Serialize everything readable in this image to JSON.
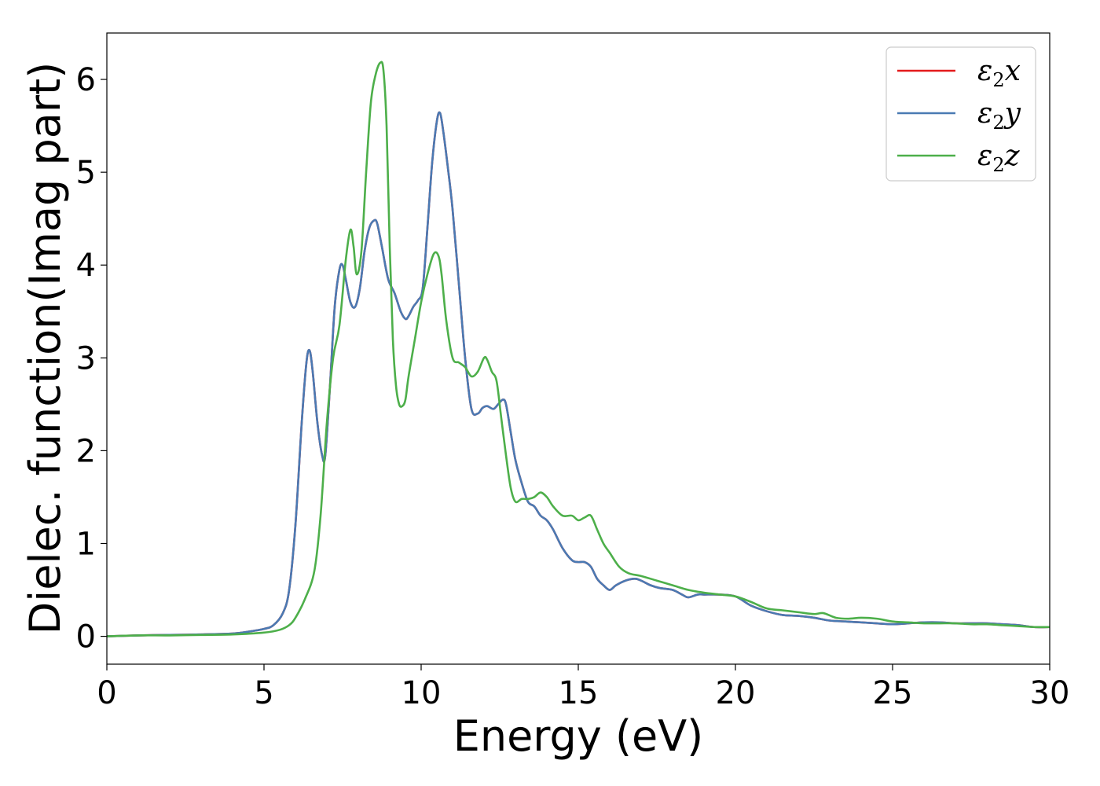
{
  "chart_data": {
    "type": "line",
    "title": "",
    "xlabel": "Energy (eV)",
    "ylabel": "Dielec. function(Imag part)",
    "xlim": [
      0,
      30
    ],
    "ylim": [
      -0.3,
      6.5
    ],
    "xticks": [
      0,
      5,
      10,
      15,
      20,
      25,
      30
    ],
    "yticks": [
      0,
      1,
      2,
      3,
      4,
      5,
      6
    ],
    "grid": false,
    "legend_position": "top-right",
    "series": [
      {
        "name": "ε2x",
        "label_base": "ε",
        "label_sub": "2",
        "label_var": "x",
        "color": "#e41a1c",
        "x": [
          0,
          1,
          2,
          3,
          4,
          4.5,
          5,
          5.3,
          5.6,
          5.8,
          6.0,
          6.2,
          6.35,
          6.45,
          6.55,
          6.7,
          6.85,
          6.95,
          7.1,
          7.25,
          7.4,
          7.5,
          7.6,
          7.75,
          7.9,
          8.05,
          8.2,
          8.35,
          8.5,
          8.6,
          8.75,
          8.95,
          9.15,
          9.35,
          9.5,
          9.6,
          9.75,
          9.9,
          10.05,
          10.2,
          10.35,
          10.5,
          10.6,
          10.7,
          10.85,
          11.0,
          11.2,
          11.4,
          11.6,
          11.8,
          11.95,
          12.1,
          12.3,
          12.45,
          12.6,
          12.7,
          12.85,
          13.0,
          13.2,
          13.4,
          13.6,
          13.8,
          14.0,
          14.2,
          14.5,
          14.8,
          15.0,
          15.2,
          15.4,
          15.6,
          15.8,
          16.0,
          16.2,
          16.5,
          16.8,
          17.0,
          17.3,
          17.6,
          18.0,
          18.3,
          18.5,
          18.8,
          19.0,
          19.5,
          20.0,
          20.5,
          21.0,
          21.5,
          22.0,
          22.5,
          23.0,
          23.5,
          24.0,
          24.5,
          25.0,
          25.5,
          26.0,
          26.5,
          27.0,
          27.5,
          28.0,
          28.5,
          29.0,
          29.5,
          30.0
        ],
        "y": [
          0.0,
          0.01,
          0.015,
          0.02,
          0.03,
          0.05,
          0.08,
          0.12,
          0.25,
          0.5,
          1.2,
          2.3,
          2.95,
          3.08,
          2.85,
          2.3,
          1.95,
          1.95,
          2.7,
          3.55,
          3.95,
          4.0,
          3.85,
          3.6,
          3.55,
          3.75,
          4.15,
          4.4,
          4.48,
          4.45,
          4.2,
          3.85,
          3.7,
          3.5,
          3.42,
          3.45,
          3.55,
          3.62,
          3.75,
          4.4,
          5.1,
          5.55,
          5.64,
          5.45,
          5.05,
          4.6,
          3.8,
          3.0,
          2.45,
          2.4,
          2.46,
          2.48,
          2.45,
          2.5,
          2.55,
          2.5,
          2.2,
          1.9,
          1.65,
          1.45,
          1.4,
          1.3,
          1.25,
          1.15,
          0.95,
          0.82,
          0.8,
          0.8,
          0.75,
          0.62,
          0.55,
          0.5,
          0.55,
          0.6,
          0.62,
          0.6,
          0.55,
          0.52,
          0.5,
          0.45,
          0.42,
          0.45,
          0.45,
          0.45,
          0.43,
          0.33,
          0.27,
          0.23,
          0.22,
          0.2,
          0.17,
          0.16,
          0.15,
          0.14,
          0.13,
          0.14,
          0.15,
          0.15,
          0.14,
          0.14,
          0.14,
          0.13,
          0.12,
          0.1,
          0.1
        ]
      },
      {
        "name": "ε2y",
        "label_base": "ε",
        "label_sub": "2",
        "label_var": "y",
        "color": "#4a7ab3",
        "x": [
          0,
          1,
          2,
          3,
          4,
          4.5,
          5,
          5.3,
          5.6,
          5.8,
          6.0,
          6.2,
          6.35,
          6.45,
          6.55,
          6.7,
          6.85,
          6.95,
          7.1,
          7.25,
          7.4,
          7.5,
          7.6,
          7.75,
          7.9,
          8.05,
          8.2,
          8.35,
          8.5,
          8.6,
          8.75,
          8.95,
          9.15,
          9.35,
          9.5,
          9.6,
          9.75,
          9.9,
          10.05,
          10.2,
          10.35,
          10.5,
          10.6,
          10.7,
          10.85,
          11.0,
          11.2,
          11.4,
          11.6,
          11.8,
          11.95,
          12.1,
          12.3,
          12.45,
          12.6,
          12.7,
          12.85,
          13.0,
          13.2,
          13.4,
          13.6,
          13.8,
          14.0,
          14.2,
          14.5,
          14.8,
          15.0,
          15.2,
          15.4,
          15.6,
          15.8,
          16.0,
          16.2,
          16.5,
          16.8,
          17.0,
          17.3,
          17.6,
          18.0,
          18.3,
          18.5,
          18.8,
          19.0,
          19.5,
          20.0,
          20.5,
          21.0,
          21.5,
          22.0,
          22.5,
          23.0,
          23.5,
          24.0,
          24.5,
          25.0,
          25.5,
          26.0,
          26.5,
          27.0,
          27.5,
          28.0,
          28.5,
          29.0,
          29.5,
          30.0
        ],
        "y": [
          0.0,
          0.01,
          0.015,
          0.02,
          0.03,
          0.05,
          0.08,
          0.12,
          0.25,
          0.5,
          1.2,
          2.3,
          2.95,
          3.08,
          2.85,
          2.3,
          1.95,
          1.95,
          2.7,
          3.55,
          3.95,
          4.0,
          3.85,
          3.6,
          3.55,
          3.75,
          4.15,
          4.4,
          4.48,
          4.45,
          4.2,
          3.85,
          3.7,
          3.5,
          3.42,
          3.45,
          3.55,
          3.62,
          3.75,
          4.4,
          5.1,
          5.55,
          5.64,
          5.45,
          5.05,
          4.6,
          3.8,
          3.0,
          2.45,
          2.4,
          2.46,
          2.48,
          2.45,
          2.5,
          2.55,
          2.5,
          2.2,
          1.9,
          1.65,
          1.45,
          1.4,
          1.3,
          1.25,
          1.15,
          0.95,
          0.82,
          0.8,
          0.8,
          0.75,
          0.62,
          0.55,
          0.5,
          0.55,
          0.6,
          0.62,
          0.6,
          0.55,
          0.52,
          0.5,
          0.45,
          0.42,
          0.45,
          0.45,
          0.45,
          0.43,
          0.33,
          0.27,
          0.23,
          0.22,
          0.2,
          0.17,
          0.16,
          0.15,
          0.14,
          0.13,
          0.14,
          0.15,
          0.15,
          0.14,
          0.14,
          0.14,
          0.13,
          0.12,
          0.1,
          0.1
        ]
      },
      {
        "name": "ε2z",
        "label_base": "ε",
        "label_sub": "2",
        "label_var": "z",
        "color": "#4daf4a",
        "x": [
          0,
          1,
          2,
          3,
          4,
          5,
          5.5,
          5.8,
          6.0,
          6.3,
          6.6,
          6.8,
          7.0,
          7.2,
          7.4,
          7.6,
          7.75,
          7.85,
          7.95,
          8.1,
          8.25,
          8.4,
          8.55,
          8.7,
          8.8,
          8.9,
          9.0,
          9.1,
          9.2,
          9.3,
          9.4,
          9.5,
          9.6,
          9.8,
          10.0,
          10.2,
          10.4,
          10.55,
          10.65,
          10.8,
          11.0,
          11.2,
          11.4,
          11.6,
          11.8,
          12.0,
          12.1,
          12.25,
          12.4,
          12.55,
          12.7,
          12.85,
          13.0,
          13.2,
          13.4,
          13.6,
          13.8,
          14.0,
          14.2,
          14.5,
          14.8,
          15.0,
          15.2,
          15.4,
          15.6,
          15.8,
          16.0,
          16.3,
          16.6,
          17.0,
          17.5,
          18.0,
          18.5,
          19.0,
          19.5,
          20.0,
          20.5,
          21.0,
          21.5,
          22.0,
          22.5,
          22.8,
          23.2,
          23.6,
          24.0,
          24.5,
          25.0,
          25.5,
          26.0,
          26.5,
          27.0,
          27.5,
          28.0,
          28.5,
          29.0,
          29.5,
          30.0
        ],
        "y": [
          0.0,
          0.01,
          0.01,
          0.015,
          0.02,
          0.04,
          0.07,
          0.12,
          0.2,
          0.4,
          0.7,
          1.3,
          2.3,
          3.0,
          3.35,
          4.05,
          4.38,
          4.2,
          3.9,
          4.15,
          5.0,
          5.75,
          6.05,
          6.18,
          6.1,
          5.5,
          4.2,
          3.2,
          2.7,
          2.5,
          2.48,
          2.55,
          2.8,
          3.2,
          3.6,
          3.9,
          4.12,
          4.1,
          3.9,
          3.4,
          3.0,
          2.95,
          2.9,
          2.8,
          2.85,
          3.0,
          2.98,
          2.85,
          2.75,
          2.35,
          1.95,
          1.6,
          1.45,
          1.48,
          1.48,
          1.5,
          1.55,
          1.5,
          1.4,
          1.3,
          1.3,
          1.25,
          1.28,
          1.3,
          1.15,
          1.0,
          0.9,
          0.75,
          0.68,
          0.65,
          0.6,
          0.55,
          0.5,
          0.47,
          0.45,
          0.43,
          0.37,
          0.3,
          0.28,
          0.26,
          0.24,
          0.25,
          0.2,
          0.19,
          0.2,
          0.19,
          0.16,
          0.15,
          0.14,
          0.14,
          0.14,
          0.13,
          0.13,
          0.12,
          0.11,
          0.1,
          0.1
        ]
      }
    ]
  }
}
